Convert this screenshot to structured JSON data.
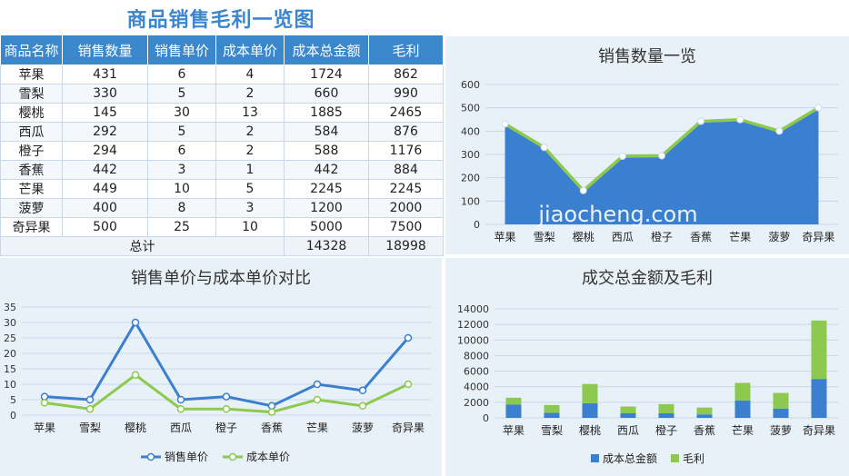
{
  "page_title": "商品销售毛利一览图",
  "watermark": "jiaocheng.com",
  "table": {
    "headers": [
      "商品名称",
      "销售数量",
      "销售单价",
      "成本单价",
      "成本总金额",
      "毛利"
    ],
    "rows": [
      [
        "苹果",
        "431",
        "6",
        "4",
        "1724",
        "862"
      ],
      [
        "雪梨",
        "330",
        "5",
        "2",
        "660",
        "990"
      ],
      [
        "樱桃",
        "145",
        "30",
        "13",
        "1885",
        "2465"
      ],
      [
        "西瓜",
        "292",
        "5",
        "2",
        "584",
        "876"
      ],
      [
        "橙子",
        "294",
        "6",
        "2",
        "588",
        "1176"
      ],
      [
        "香蕉",
        "442",
        "3",
        "1",
        "442",
        "884"
      ],
      [
        "芒果",
        "449",
        "10",
        "5",
        "2245",
        "2245"
      ],
      [
        "菠萝",
        "400",
        "8",
        "3",
        "1200",
        "2000"
      ],
      [
        "奇异果",
        "500",
        "25",
        "10",
        "5000",
        "7500"
      ]
    ],
    "total_label": "总计",
    "total_cost": "14328",
    "total_profit": "18998"
  },
  "colors": {
    "header_bg": "#3a87cc",
    "title": "#3b86cf",
    "blue": "#3a7fd0",
    "green": "#8dc94e",
    "panel_bg": "#e9f1f8"
  },
  "chart_data": [
    {
      "type": "area",
      "title": "销售数量一览",
      "categories": [
        "苹果",
        "雪梨",
        "樱桃",
        "西瓜",
        "橙子",
        "香蕉",
        "芒果",
        "菠萝",
        "奇异果"
      ],
      "series": [
        {
          "values": [
            431,
            330,
            145,
            292,
            294,
            442,
            449,
            400,
            500
          ]
        }
      ],
      "ylim": [
        0,
        600
      ],
      "yticks": [
        0,
        100,
        200,
        300,
        400,
        500,
        600
      ],
      "grid": true,
      "legend": "none"
    },
    {
      "type": "line",
      "title": "销售单价与成本单价对比",
      "categories": [
        "苹果",
        "雪梨",
        "樱桃",
        "西瓜",
        "橙子",
        "香蕉",
        "芒果",
        "菠萝",
        "奇异果"
      ],
      "series": [
        {
          "name": "销售单价",
          "values": [
            6,
            5,
            30,
            5,
            6,
            3,
            10,
            8,
            25
          ]
        },
        {
          "name": "成本单价",
          "values": [
            4,
            2,
            13,
            2,
            2,
            1,
            5,
            3,
            10
          ]
        }
      ],
      "ylim": [
        0,
        35
      ],
      "yticks": [
        0,
        5,
        10,
        15,
        20,
        25,
        30,
        35
      ],
      "grid": true,
      "legend": "bottom"
    },
    {
      "type": "bar",
      "stacked": true,
      "title": "成交总金额及毛利",
      "categories": [
        "苹果",
        "雪梨",
        "樱桃",
        "西瓜",
        "橙子",
        "香蕉",
        "芒果",
        "菠萝",
        "奇异果"
      ],
      "series": [
        {
          "name": "成本总金额",
          "values": [
            1724,
            660,
            1885,
            584,
            588,
            442,
            2245,
            1200,
            5000
          ]
        },
        {
          "name": "毛利",
          "values": [
            862,
            990,
            2465,
            876,
            1176,
            884,
            2245,
            2000,
            7500
          ]
        }
      ],
      "ylim": [
        0,
        14000
      ],
      "yticks": [
        0,
        2000,
        4000,
        6000,
        8000,
        10000,
        12000,
        14000
      ],
      "grid": true,
      "legend": "bottom"
    }
  ]
}
